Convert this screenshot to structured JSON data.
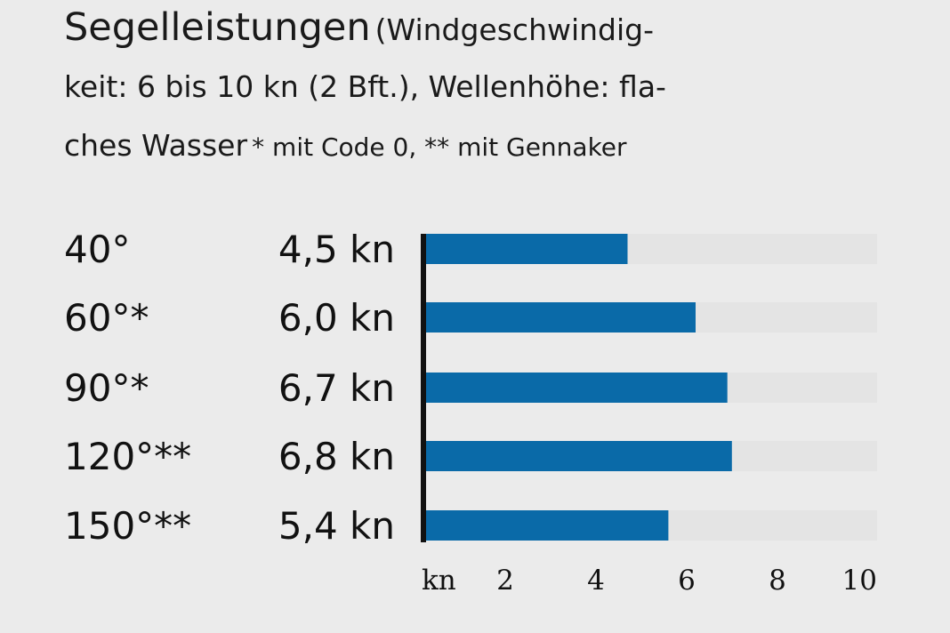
{
  "title": {
    "line1_main": "Segelleistungen",
    "line1_rest": "(Windgeschwindig-",
    "line2": "keit: 6 bis 10 kn (2 Bft.), Wellenhöhe: fla-",
    "line3_main": "ches Wasser",
    "line3_note": "* mit Code 0, ** mit Gennaker"
  },
  "chart_data": {
    "type": "bar",
    "orientation": "horizontal",
    "categories": [
      "40°",
      "60°*",
      "90°*",
      "120°**",
      "150°**"
    ],
    "values": [
      4.5,
      6.0,
      6.7,
      6.8,
      5.4
    ],
    "value_labels": [
      "4,5 kn",
      "6,0 kn",
      "6,7 kn",
      "6,8 kn",
      "5,4 kn"
    ],
    "xlim": [
      0,
      10
    ],
    "xticks": [
      2,
      4,
      6,
      8,
      10
    ],
    "tick_labels": [
      "2",
      "4",
      "6",
      "8",
      "10"
    ],
    "axis_unit_label": "kn",
    "bar_color": "#0a6aa8",
    "track_color": "#e4e4e4",
    "axis_color": "#111111",
    "grid": false
  }
}
